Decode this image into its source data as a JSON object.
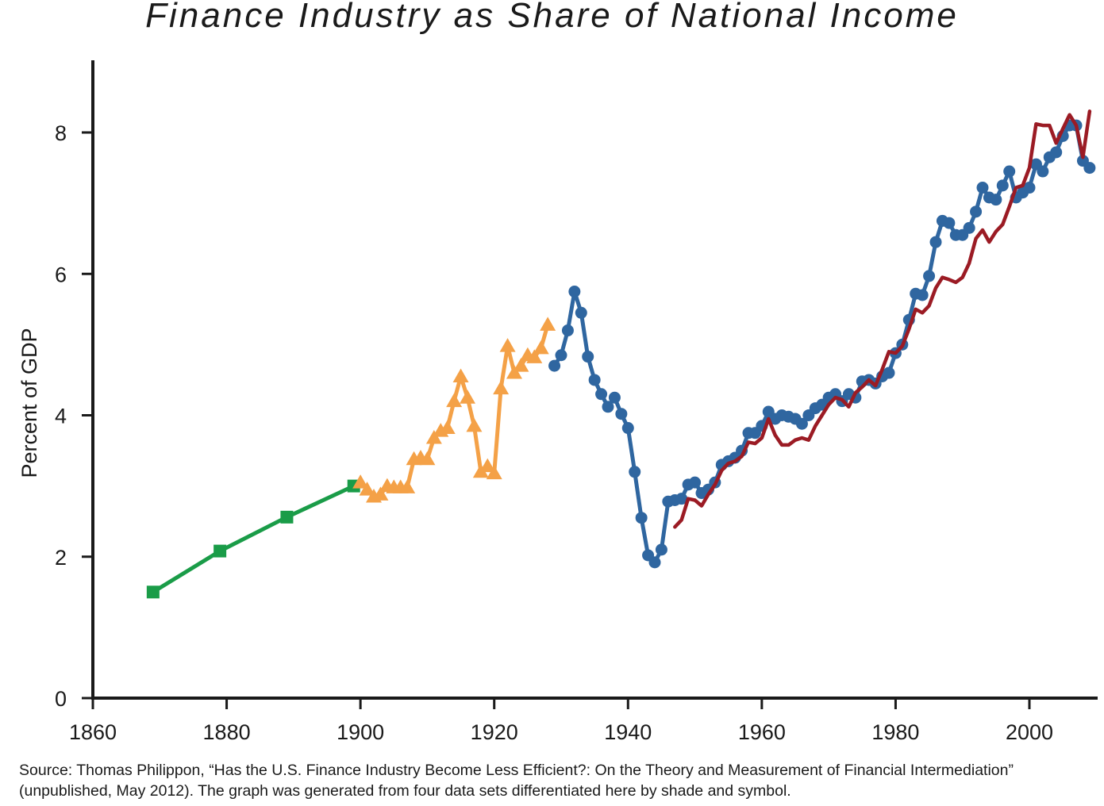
{
  "chart_data": {
    "type": "line",
    "title": "Finance Industry as Share of National Income",
    "ylabel": "Percent of GDP",
    "xlabel": "",
    "xlim": [
      1860,
      2010
    ],
    "ylim": [
      0,
      9
    ],
    "xticks": [
      1860,
      1880,
      1900,
      1920,
      1940,
      1960,
      1980,
      2000
    ],
    "yticks": [
      0,
      2,
      4,
      6,
      8
    ],
    "grid": false,
    "legend": "none",
    "series": [
      {
        "color": "#1a9c48",
        "marker": "square",
        "points": [
          [
            1869,
            1.5
          ],
          [
            1879,
            2.08
          ],
          [
            1889,
            2.56
          ],
          [
            1899,
            3.0
          ]
        ]
      },
      {
        "color": "#f4a147",
        "marker": "triangle",
        "points": [
          [
            1900,
            3.05
          ],
          [
            1901,
            2.95
          ],
          [
            1902,
            2.85
          ],
          [
            1903,
            2.88
          ],
          [
            1904,
            3.0
          ],
          [
            1905,
            2.98
          ],
          [
            1906,
            2.98
          ],
          [
            1907,
            2.98
          ],
          [
            1908,
            3.38
          ],
          [
            1909,
            3.4
          ],
          [
            1910,
            3.38
          ],
          [
            1911,
            3.68
          ],
          [
            1912,
            3.78
          ],
          [
            1913,
            3.82
          ],
          [
            1914,
            4.2
          ],
          [
            1915,
            4.55
          ],
          [
            1916,
            4.25
          ],
          [
            1917,
            3.85
          ],
          [
            1918,
            3.2
          ],
          [
            1919,
            3.28
          ],
          [
            1920,
            3.18
          ],
          [
            1921,
            4.38
          ],
          [
            1922,
            4.98
          ],
          [
            1923,
            4.6
          ],
          [
            1924,
            4.7
          ],
          [
            1925,
            4.85
          ],
          [
            1926,
            4.82
          ],
          [
            1927,
            4.95
          ],
          [
            1928,
            5.28
          ]
        ]
      },
      {
        "color": "#2f66a0",
        "marker": "circle",
        "points": [
          [
            1929,
            4.7
          ],
          [
            1930,
            4.85
          ],
          [
            1931,
            5.2
          ],
          [
            1932,
            5.75
          ],
          [
            1933,
            5.45
          ],
          [
            1934,
            4.83
          ],
          [
            1935,
            4.5
          ],
          [
            1936,
            4.3
          ],
          [
            1937,
            4.12
          ],
          [
            1938,
            4.25
          ],
          [
            1939,
            4.02
          ],
          [
            1940,
            3.82
          ],
          [
            1941,
            3.2
          ],
          [
            1942,
            2.55
          ],
          [
            1943,
            2.02
          ],
          [
            1944,
            1.92
          ],
          [
            1945,
            2.1
          ],
          [
            1946,
            2.78
          ],
          [
            1947,
            2.8
          ],
          [
            1948,
            2.82
          ],
          [
            1949,
            3.02
          ],
          [
            1950,
            3.05
          ],
          [
            1951,
            2.9
          ],
          [
            1952,
            2.95
          ],
          [
            1953,
            3.05
          ],
          [
            1954,
            3.3
          ],
          [
            1955,
            3.35
          ],
          [
            1956,
            3.4
          ],
          [
            1957,
            3.5
          ],
          [
            1958,
            3.75
          ],
          [
            1959,
            3.75
          ],
          [
            1960,
            3.85
          ],
          [
            1961,
            4.05
          ],
          [
            1962,
            3.95
          ],
          [
            1963,
            4.0
          ],
          [
            1964,
            3.98
          ],
          [
            1965,
            3.95
          ],
          [
            1966,
            3.88
          ],
          [
            1967,
            4.0
          ],
          [
            1968,
            4.1
          ],
          [
            1969,
            4.15
          ],
          [
            1970,
            4.25
          ],
          [
            1971,
            4.3
          ],
          [
            1972,
            4.2
          ],
          [
            1973,
            4.3
          ],
          [
            1974,
            4.25
          ],
          [
            1975,
            4.48
          ],
          [
            1976,
            4.5
          ],
          [
            1977,
            4.45
          ],
          [
            1978,
            4.55
          ],
          [
            1979,
            4.6
          ],
          [
            1980,
            4.88
          ],
          [
            1981,
            5.0
          ],
          [
            1982,
            5.35
          ],
          [
            1983,
            5.72
          ],
          [
            1984,
            5.7
          ],
          [
            1985,
            5.97
          ],
          [
            1986,
            6.45
          ],
          [
            1987,
            6.75
          ],
          [
            1988,
            6.72
          ],
          [
            1989,
            6.55
          ],
          [
            1990,
            6.55
          ],
          [
            1991,
            6.65
          ],
          [
            1992,
            6.88
          ],
          [
            1993,
            7.22
          ],
          [
            1994,
            7.08
          ],
          [
            1995,
            7.05
          ],
          [
            1996,
            7.25
          ],
          [
            1997,
            7.45
          ],
          [
            1998,
            7.08
          ],
          [
            1999,
            7.15
          ],
          [
            2000,
            7.22
          ],
          [
            2001,
            7.55
          ],
          [
            2002,
            7.45
          ],
          [
            2003,
            7.65
          ],
          [
            2004,
            7.72
          ],
          [
            2005,
            7.95
          ],
          [
            2006,
            8.1
          ],
          [
            2007,
            8.1
          ],
          [
            2008,
            7.6
          ],
          [
            2009,
            7.5
          ]
        ]
      },
      {
        "color": "#9b1b24",
        "marker": "none",
        "points": [
          [
            1947,
            2.42
          ],
          [
            1948,
            2.52
          ],
          [
            1949,
            2.82
          ],
          [
            1950,
            2.8
          ],
          [
            1951,
            2.72
          ],
          [
            1952,
            2.88
          ],
          [
            1953,
            3.02
          ],
          [
            1954,
            3.22
          ],
          [
            1955,
            3.32
          ],
          [
            1956,
            3.35
          ],
          [
            1957,
            3.42
          ],
          [
            1958,
            3.62
          ],
          [
            1959,
            3.6
          ],
          [
            1960,
            3.68
          ],
          [
            1961,
            3.95
          ],
          [
            1962,
            3.72
          ],
          [
            1963,
            3.58
          ],
          [
            1964,
            3.58
          ],
          [
            1965,
            3.65
          ],
          [
            1966,
            3.68
          ],
          [
            1967,
            3.65
          ],
          [
            1968,
            3.85
          ],
          [
            1969,
            4.0
          ],
          [
            1970,
            4.15
          ],
          [
            1971,
            4.25
          ],
          [
            1972,
            4.22
          ],
          [
            1973,
            4.12
          ],
          [
            1974,
            4.32
          ],
          [
            1975,
            4.4
          ],
          [
            1976,
            4.5
          ],
          [
            1977,
            4.42
          ],
          [
            1978,
            4.65
          ],
          [
            1979,
            4.9
          ],
          [
            1980,
            4.88
          ],
          [
            1981,
            4.98
          ],
          [
            1982,
            5.22
          ],
          [
            1983,
            5.5
          ],
          [
            1984,
            5.45
          ],
          [
            1985,
            5.55
          ],
          [
            1986,
            5.8
          ],
          [
            1987,
            5.95
          ],
          [
            1988,
            5.92
          ],
          [
            1989,
            5.88
          ],
          [
            1990,
            5.95
          ],
          [
            1991,
            6.15
          ],
          [
            1992,
            6.5
          ],
          [
            1993,
            6.62
          ],
          [
            1994,
            6.45
          ],
          [
            1995,
            6.6
          ],
          [
            1996,
            6.7
          ],
          [
            1997,
            6.95
          ],
          [
            1998,
            7.22
          ],
          [
            1999,
            7.25
          ],
          [
            2000,
            7.5
          ],
          [
            2001,
            8.12
          ],
          [
            2002,
            8.1
          ],
          [
            2003,
            8.1
          ],
          [
            2004,
            7.85
          ],
          [
            2005,
            8.05
          ],
          [
            2006,
            8.25
          ],
          [
            2007,
            8.1
          ],
          [
            2008,
            7.65
          ],
          [
            2009,
            8.3
          ]
        ]
      }
    ]
  },
  "source_note": "Source: Thomas Philippon, “Has the U.S. Finance Industry Become Less Efficient?: On the Theory and Measurement of Financial Intermediation” (unpublished, May 2012). The graph was generated from four data sets differentiated here by shade and symbol."
}
